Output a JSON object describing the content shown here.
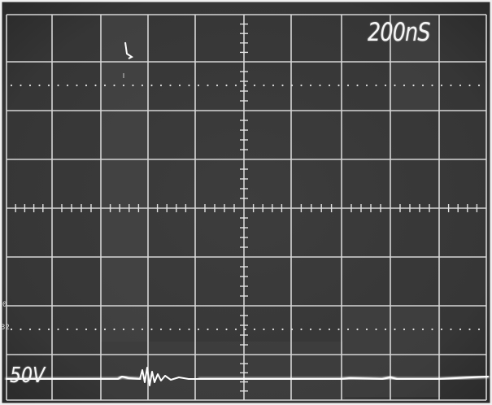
{
  "scope": {
    "timebase": "200nS",
    "volts_per_div": "50V",
    "side_mark_top": "0",
    "side_mark_bottom": "32"
  },
  "colors": {
    "screen_bg": "#3a3a3a",
    "graticule": "#d9d9d9",
    "trace": "#ffffff"
  }
}
